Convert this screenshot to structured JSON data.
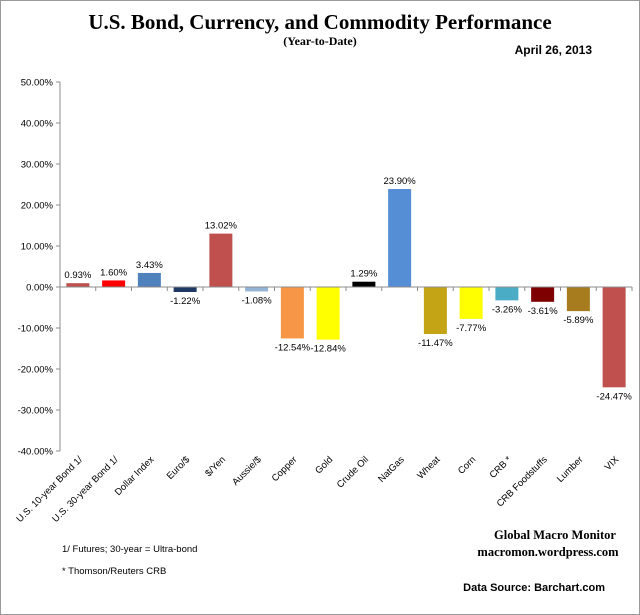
{
  "chart_data": {
    "type": "bar",
    "title": "U.S. Bond, Currency, and Commodity Performance",
    "subtitle": "(Year-to-Date)",
    "date": "April 26, 2013",
    "ylim": [
      -40,
      50
    ],
    "yticks": [
      50,
      40,
      30,
      20,
      10,
      0,
      -10,
      -20,
      -30,
      -40
    ],
    "ytick_labels": [
      "50.00%",
      "40.00%",
      "30.00%",
      "20.00%",
      "10.00%",
      "0.00%",
      "-10.00%",
      "-20.00%",
      "-30.00%",
      "-40.00%"
    ],
    "grid": false,
    "categories": [
      "U.S. 10-year Bond 1/",
      "U.S. 30-year Bond 1/",
      "Dollar Index",
      "Euro/$",
      "$/Yen",
      "Aussie/$",
      "Copper",
      "Gold",
      "Crude Oil",
      "NatGas",
      "Wheat",
      "Corn",
      "CRB *",
      "CRB Foodstuffs",
      "Lumber",
      "VIX"
    ],
    "values": [
      0.93,
      1.6,
      3.43,
      -1.22,
      13.02,
      -1.08,
      -12.54,
      -12.84,
      1.29,
      23.9,
      -11.47,
      -7.77,
      -3.26,
      -3.61,
      -5.89,
      -24.47
    ],
    "value_labels": [
      "0.93%",
      "1.60%",
      "3.43%",
      "-1.22%",
      "13.02%",
      "-1.08%",
      "-12.54%",
      "-12.84%",
      "1.29%",
      "23.90%",
      "-11.47%",
      "-7.77%",
      "-3.26%",
      "-3.61%",
      "-5.89%",
      "-24.47%"
    ],
    "colors": [
      "#c0504d",
      "#ff0000",
      "#4f81bd",
      "#1f3864",
      "#c0504d",
      "#95b3d7",
      "#f79646",
      "#ffff00",
      "#000000",
      "#558ed5",
      "#c4a415",
      "#ffff00",
      "#4bacc6",
      "#7f0000",
      "#a67c1e",
      "#c0504d"
    ]
  },
  "credits": {
    "line1": "Global Macro Monitor",
    "line2": "macromon.wordpress.com"
  },
  "notes": {
    "futures": "1/   Futures; 30-year = Ultra-bond",
    "crb": "* Thomson/Reuters CRB"
  },
  "source": "Data Source:  Barchart.com"
}
